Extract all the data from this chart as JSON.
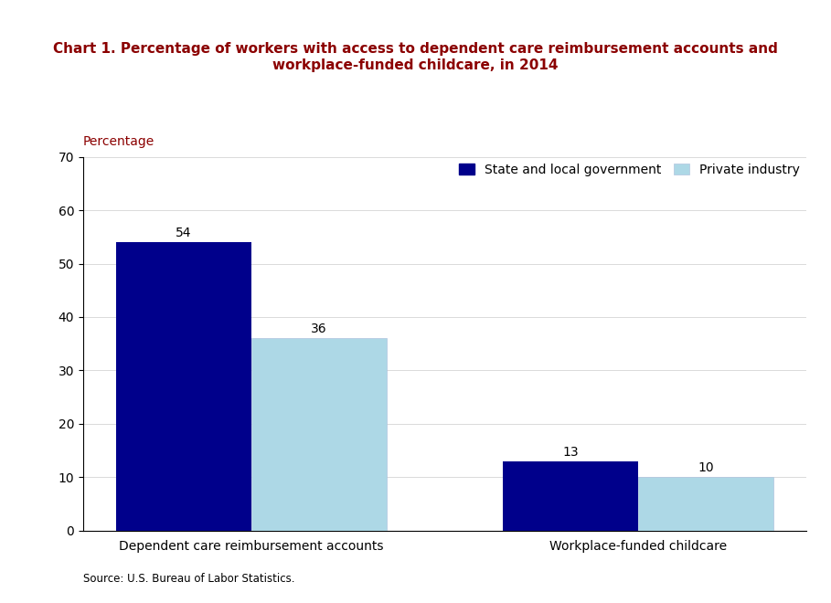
{
  "title_line1": "Chart 1. Percentage of workers with access to dependent care reimbursement accounts and",
  "title_line2": "workplace-funded childcare, in 2014",
  "ylabel": "Percentage",
  "categories": [
    "Dependent care reimbursement accounts",
    "Workplace-funded childcare"
  ],
  "state_local_values": [
    54,
    13
  ],
  "private_industry_values": [
    36,
    10
  ],
  "state_local_color": "#00008B",
  "private_industry_color": "#ADD8E6",
  "ylim": [
    0,
    70
  ],
  "yticks": [
    0,
    10,
    20,
    30,
    40,
    50,
    60,
    70
  ],
  "bar_width": 0.35,
  "legend_labels": [
    "State and local government",
    "Private industry"
  ],
  "source_text": "Source: U.S. Bureau of Labor Statistics.",
  "background_color": "#ffffff",
  "title_color": "#8B0000",
  "ylabel_color": "#8B0000",
  "source_color": "#00008B",
  "title_fontsize": 11,
  "label_fontsize": 10,
  "tick_fontsize": 10,
  "annotation_fontsize": 10
}
